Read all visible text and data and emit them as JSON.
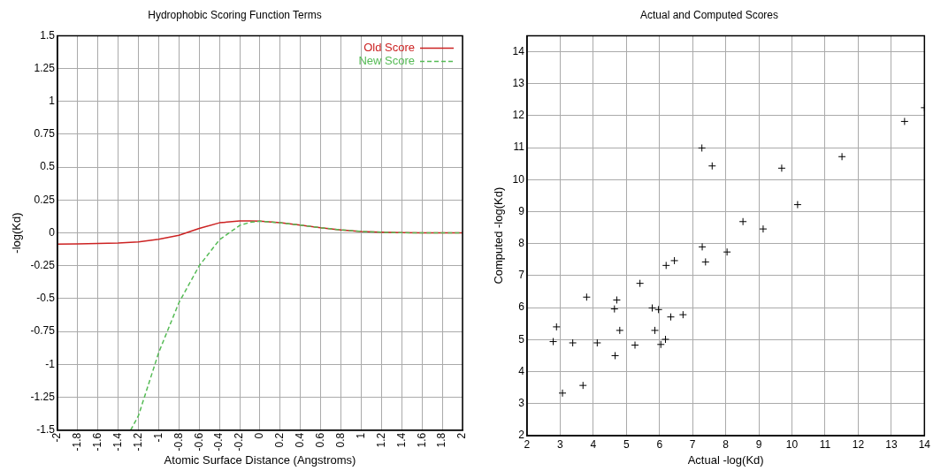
{
  "chart_data": [
    {
      "type": "line",
      "title": "Hydrophobic Scoring Function Terms",
      "xlabel": "Atomic Surface Distance (Angstroms)",
      "ylabel": "-log(Kd)",
      "xlim": [
        -2,
        2
      ],
      "ylim": [
        -1.5,
        1.5
      ],
      "xticks": [
        -2,
        -1.8,
        -1.6,
        -1.4,
        -1.2,
        -1,
        -0.8,
        -0.6,
        -0.4,
        -0.2,
        0,
        0.2,
        0.4,
        0.6,
        0.8,
        1,
        1.2,
        1.4,
        1.6,
        1.8,
        2
      ],
      "yticks": [
        -1.5,
        -1.25,
        -1,
        -0.75,
        -0.5,
        -0.25,
        0,
        0.25,
        0.5,
        0.75,
        1,
        1.25,
        1.5
      ],
      "grid": true,
      "legend": "top right",
      "marker": "none",
      "series": [
        {
          "name": "Old Score",
          "color": "#cc2222",
          "line_style": "solid",
          "x": [
            -2,
            -1.8,
            -1.6,
            -1.4,
            -1.2,
            -1,
            -0.8,
            -0.6,
            -0.4,
            -0.2,
            -0.1,
            0,
            0.2,
            0.4,
            0.6,
            0.8,
            1,
            1.2,
            1.4,
            1.6,
            1.8,
            2
          ],
          "values": [
            -0.085,
            -0.084,
            -0.081,
            -0.077,
            -0.068,
            -0.048,
            -0.018,
            0.034,
            0.077,
            0.091,
            0.091,
            0.089,
            0.077,
            0.059,
            0.039,
            0.023,
            0.011,
            0.005,
            0.002,
            0,
            0,
            0
          ]
        },
        {
          "name": "New Score",
          "color": "#55bb55",
          "line_style": "dashed",
          "x": [
            -1.277,
            -1.2,
            -1,
            -0.8,
            -0.6,
            -0.4,
            -0.2,
            -0.1,
            0,
            0.2,
            0.4,
            0.6,
            0.8,
            1,
            1.2,
            1.4,
            1.6,
            1.8,
            2
          ],
          "values": [
            -1.5,
            -1.39,
            -0.91,
            -0.53,
            -0.25,
            -0.052,
            0.057,
            0.08,
            0.089,
            0.077,
            0.059,
            0.039,
            0.023,
            0.011,
            0.005,
            0.002,
            0,
            0,
            0
          ]
        }
      ]
    },
    {
      "type": "scatter",
      "title": "Actual and Computed Scores",
      "xlabel": "Actual -log(Kd)",
      "ylabel": "Computed -log(Kd)",
      "xlim": [
        2,
        14
      ],
      "ylim": [
        2,
        14.5
      ],
      "xticks": [
        2,
        3,
        4,
        5,
        6,
        7,
        8,
        9,
        10,
        11,
        12,
        13,
        14
      ],
      "yticks": [
        2,
        3,
        4,
        5,
        6,
        7,
        8,
        9,
        10,
        11,
        12,
        13,
        14
      ],
      "grid": true,
      "marker": "cross",
      "color": "#000000",
      "x": [
        2.79,
        2.89,
        3.07,
        3.38,
        3.69,
        3.8,
        4.12,
        4.64,
        4.71,
        4.66,
        4.8,
        5.26,
        5.41,
        5.78,
        5.86,
        5.97,
        6.04,
        6.18,
        6.2,
        6.34,
        6.45,
        6.71,
        7.29,
        7.39,
        8.04,
        7.28,
        7.59,
        8.52,
        9.13,
        9.69,
        10.17,
        11.51,
        13.4,
        14
      ],
      "values": [
        4.94,
        5.4,
        3.33,
        4.9,
        3.57,
        6.33,
        4.9,
        5.96,
        6.24,
        4.5,
        5.29,
        4.83,
        6.76,
        5.99,
        5.29,
        5.94,
        4.85,
        5.01,
        7.32,
        5.71,
        7.47,
        5.78,
        7.9,
        7.43,
        7.74,
        10.99,
        10.43,
        8.69,
        8.46,
        10.36,
        9.22,
        10.72,
        11.82,
        12.25
      ]
    }
  ]
}
